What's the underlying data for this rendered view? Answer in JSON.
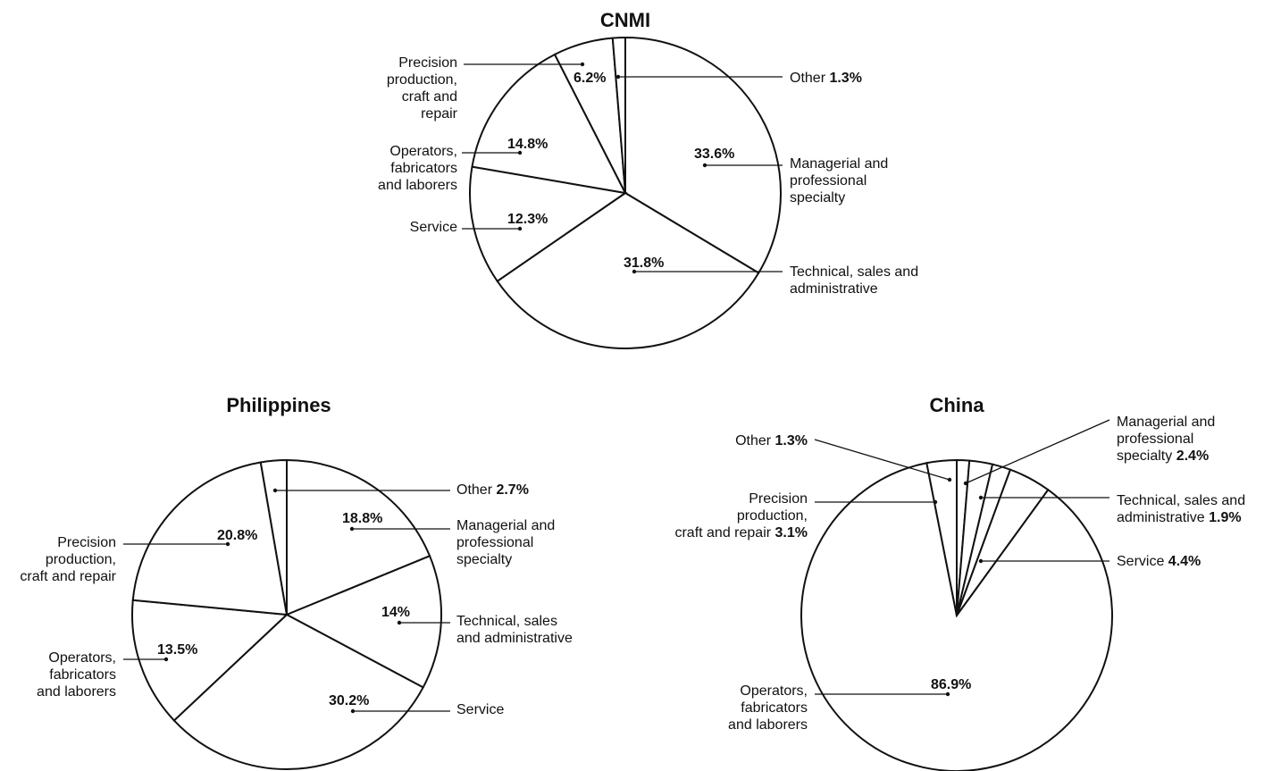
{
  "chart_data": [
    {
      "type": "pie",
      "title": "CNMI",
      "slices": [
        {
          "name": "Managerial and professional specialty",
          "value": 33.6,
          "label": "33.6%"
        },
        {
          "name": "Technical, sales and administrative",
          "value": 31.8,
          "label": "31.8%"
        },
        {
          "name": "Service",
          "value": 12.3,
          "label": "12.3%"
        },
        {
          "name": "Operators, fabricators and laborers",
          "value": 14.8,
          "label": "14.8%"
        },
        {
          "name": "Precision production, craft and repair",
          "value": 6.2,
          "label": "6.2%"
        },
        {
          "name": "Other",
          "value": 1.3,
          "label": "1.3%"
        }
      ]
    },
    {
      "type": "pie",
      "title": "Philippines",
      "slices": [
        {
          "name": "Managerial and professional specialty",
          "value": 18.8,
          "label": "18.8%"
        },
        {
          "name": "Technical, sales and administrative",
          "value": 14,
          "label": "14%"
        },
        {
          "name": "Service",
          "value": 30.2,
          "label": "30.2%"
        },
        {
          "name": "Operators, fabricators and laborers",
          "value": 13.5,
          "label": "13.5%"
        },
        {
          "name": "Precision production, craft and repair",
          "value": 20.8,
          "label": "20.8%"
        },
        {
          "name": "Other",
          "value": 2.7,
          "label": "2.7%"
        }
      ]
    },
    {
      "type": "pie",
      "title": "China",
      "slices": [
        {
          "name": "Managerial and professional specialty",
          "value": 2.4,
          "label": "2.4%"
        },
        {
          "name": "Technical, sales and administrative",
          "value": 1.9,
          "label": "1.9%"
        },
        {
          "name": "Service",
          "value": 4.4,
          "label": "4.4%"
        },
        {
          "name": "Operators, fabricators and laborers",
          "value": 86.9,
          "label": "86.9%"
        },
        {
          "name": "Precision production, craft and repair",
          "value": 3.1,
          "label": "3.1%"
        },
        {
          "name": "Other",
          "value": 1.3,
          "label": "1.3%"
        }
      ]
    }
  ]
}
